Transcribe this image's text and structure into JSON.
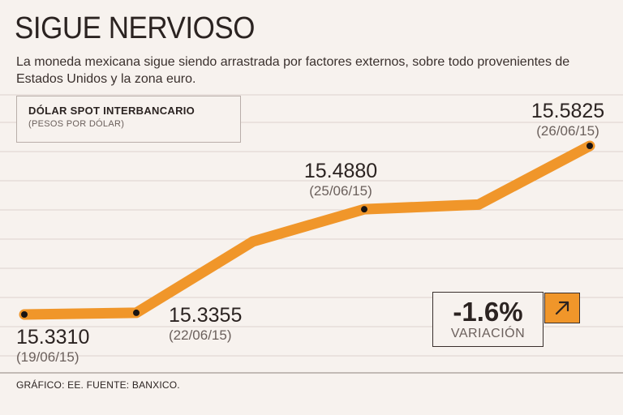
{
  "header": {
    "title": "SIGUE NERVIOSO",
    "subtitle": "La moneda mexicana sigue siendo arrastrada por factores externos, sobre todo provenientes de Estados Unidos y la zona euro."
  },
  "legend": {
    "title": "DÓLAR SPOT INTERBANCARIO",
    "unit": "(PESOS POR DÓLAR)"
  },
  "variation": {
    "value": "-1.6%",
    "label": "VARIACIÓN",
    "arrow_icon": "arrow-up-right-icon"
  },
  "footer": {
    "source": "GRÁFICO: EE. FUENTE: BANXICO."
  },
  "colors": {
    "line": "#f0962a",
    "background": "#f7f2ee",
    "text": "#2b2321",
    "muted": "#6b605c"
  },
  "chart_data": {
    "type": "line",
    "x": [
      "19/06/15",
      "",
      "22/06/15",
      "",
      "25/06/15",
      "",
      "26/06/15"
    ],
    "series": [
      {
        "values": [
          15.331,
          15.3335,
          15.3355,
          15.44,
          15.488,
          15.495,
          15.5825
        ]
      }
    ],
    "annotations": [
      {
        "index": 0,
        "value": "15.3310",
        "date": "(19/06/15)"
      },
      {
        "index": 1,
        "value": "15.3355",
        "date": "(22/06/15)"
      },
      {
        "index": 3,
        "value": "15.4880",
        "date": "(25/06/15)"
      },
      {
        "index": 5,
        "value": "15.5825",
        "date": "(26/06/15)"
      }
    ],
    "ylim": [
      15.3,
      15.6
    ],
    "grid": true
  }
}
